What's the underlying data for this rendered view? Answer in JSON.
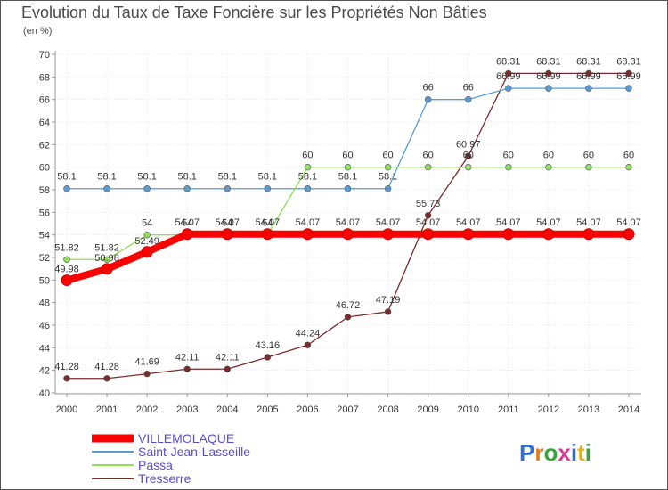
{
  "chart_data": {
    "type": "line",
    "title": "Evolution du Taux de Taxe Foncière sur les Propriétés Non Bâties",
    "subtitle": "(en %)",
    "xlabel": "",
    "ylabel": "(en %)",
    "ylim": [
      40,
      70
    ],
    "yticks": [
      40,
      42,
      44,
      46,
      48,
      50,
      52,
      54,
      56,
      58,
      60,
      62,
      64,
      66,
      68,
      70
    ],
    "x": [
      2000,
      2001,
      2002,
      2003,
      2004,
      2005,
      2006,
      2007,
      2008,
      2009,
      2010,
      2011,
      2012,
      2013,
      2014
    ],
    "grid": true,
    "legend_position": "bottom-left",
    "series": [
      {
        "name": "VILLEMOLAQUE",
        "color": "#ff0000",
        "values": [
          49.98,
          50.98,
          52.49,
          54.07,
          54.07,
          54.07,
          54.07,
          54.07,
          54.07,
          54.07,
          54.07,
          54.07,
          54.07,
          54.07,
          54.07
        ],
        "labels": [
          "49.98",
          "50.98",
          "52.49",
          "54.07",
          "54.07",
          "54.07",
          "54.07",
          "54.07",
          "54.07",
          "54.07",
          "54.07",
          "54.07",
          "54.07",
          "54.07",
          "54.07"
        ]
      },
      {
        "name": "Saint-Jean-Lasseille",
        "color": "#5a9bd4",
        "values": [
          58.1,
          58.1,
          58.1,
          58.1,
          58.1,
          58.1,
          58.1,
          58.1,
          58.1,
          66,
          66,
          66.99,
          66.99,
          66.99,
          66.99
        ],
        "labels": [
          "58.1",
          "58.1",
          "58.1",
          "58.1",
          "58.1",
          "58.1",
          "58.1",
          "58.1",
          "58.1",
          "66",
          "66",
          "66.99",
          "66.99",
          "66.99",
          "66.99"
        ]
      },
      {
        "name": "Passa",
        "color": "#8ee05a",
        "values": [
          51.82,
          51.82,
          54,
          54,
          54,
          54,
          60,
          60,
          60,
          60,
          60,
          60,
          60,
          60,
          60
        ],
        "labels": [
          "51.82",
          "51.82",
          "54",
          "54",
          "54",
          "54",
          "60",
          "60",
          "60",
          "60",
          "60",
          "60",
          "60",
          "60",
          "60"
        ]
      },
      {
        "name": "Tresserre",
        "color": "#7a2b2b",
        "values": [
          41.28,
          41.28,
          41.69,
          42.11,
          42.11,
          43.16,
          44.24,
          46.72,
          47.19,
          55.73,
          60.97,
          68.31,
          68.31,
          68.31,
          68.31
        ],
        "labels": [
          "41.28",
          "41.28",
          "41.69",
          "42.11",
          "42.11",
          "43.16",
          "44.24",
          "46.72",
          "47.19",
          "55.73",
          "60.97",
          "68.31",
          "68.31",
          "68.31",
          "68.31"
        ]
      }
    ]
  },
  "brand": {
    "logo_text": "Proxiti",
    "colors": [
      "#2f6fd6",
      "#e07a1f",
      "#3aa33a",
      "#d43c8f",
      "#2f6fd6",
      "#e0b21f",
      "#3aa33a"
    ]
  }
}
